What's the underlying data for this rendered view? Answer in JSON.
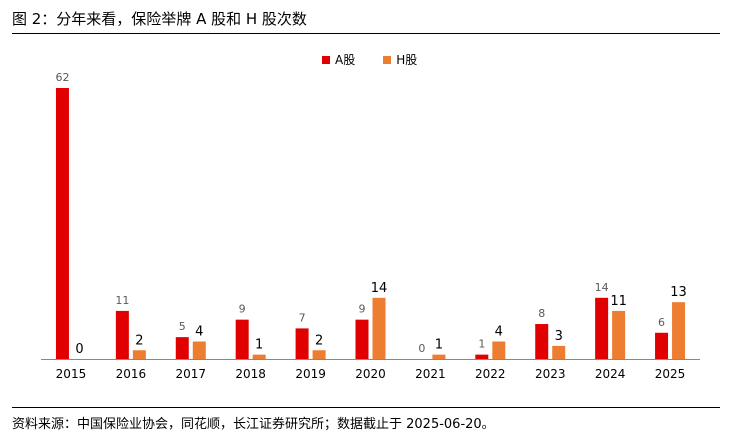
{
  "figure": {
    "title": "图 2：分年来看，保险举牌 A 股和 H 股次数",
    "source": "资料来源：中国保险业协会，同花顺，长江证券研究所；数据截止于 2025-06-20。"
  },
  "colors": {
    "a_share": "#e00000",
    "h_share": "#ed7d31",
    "axis": "#888888",
    "label": "#595959"
  },
  "chart_data": {
    "type": "bar",
    "categories": [
      "2015",
      "2016",
      "2017",
      "2018",
      "2019",
      "2020",
      "2021",
      "2022",
      "2023",
      "2024",
      "2025"
    ],
    "series": [
      {
        "name": "A股",
        "values": [
          62,
          11,
          5,
          9,
          7,
          9,
          0,
          1,
          8,
          14,
          6
        ]
      },
      {
        "name": "H股",
        "values": [
          0,
          2,
          4,
          1,
          2,
          14,
          1,
          4,
          3,
          11,
          13
        ]
      }
    ],
    "legend_position": "top-center",
    "grid": false,
    "data_labels": true
  }
}
